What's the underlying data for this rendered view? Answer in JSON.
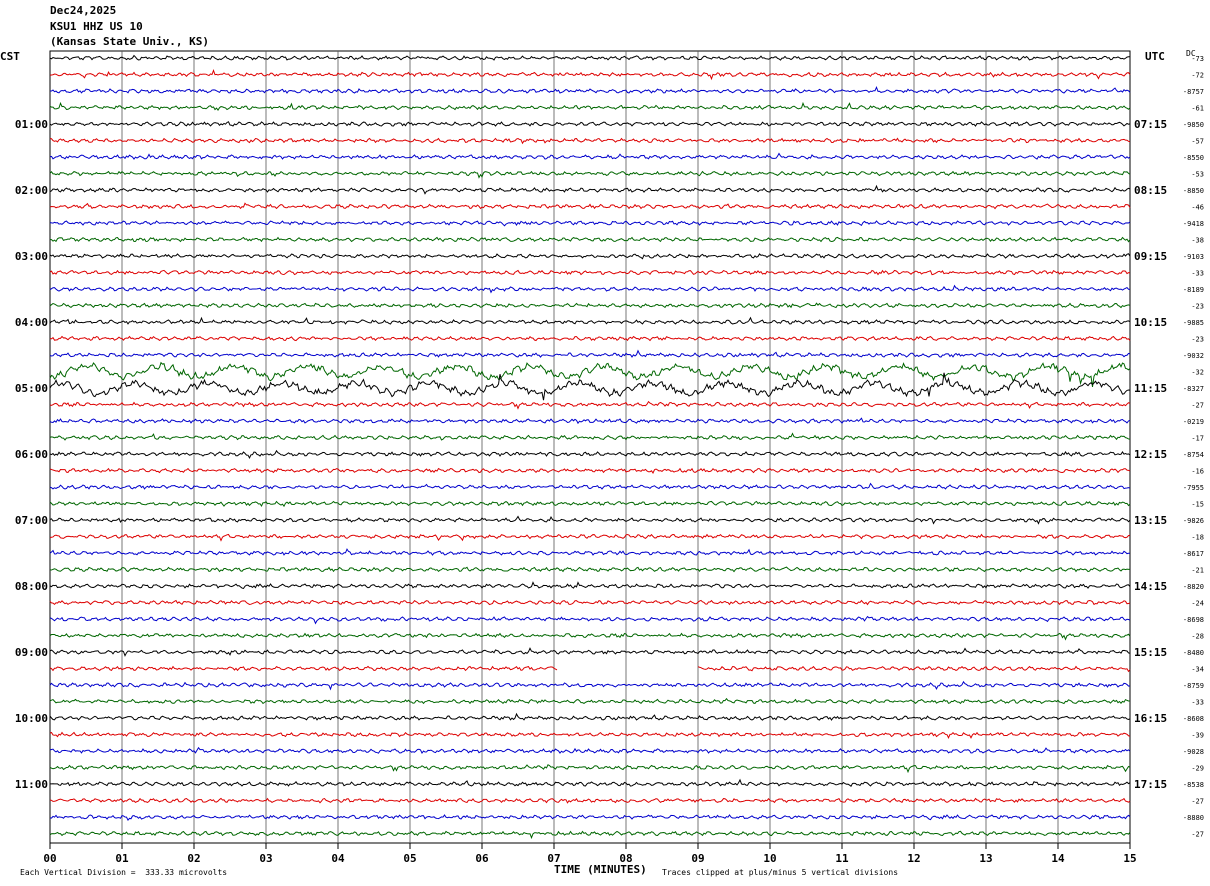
{
  "header": {
    "date": "Dec24,2025",
    "station": "KSU1 HHZ US 10",
    "location": "(Kansas State Univ., KS)"
  },
  "left_tz": "CST",
  "right_tz": "UTC",
  "dc_label": "DC",
  "footer": {
    "scale": "Each Vertical Division =  333.33 microvolts",
    "xlabel": "TIME (MINUTES)",
    "clip_note": "Traces clipped at plus/minus 5 vertical divisions"
  },
  "colors": {
    "trace_cycle": [
      "#000000",
      "#dd0000",
      "#0000cc",
      "#006600"
    ],
    "grid": "#555555"
  },
  "chart_data": {
    "type": "line",
    "title": "KSU1 HHZ US 10",
    "xlabel": "TIME (MINUTES)",
    "xlim": [
      0,
      15
    ],
    "x_ticks": [
      "00",
      "01",
      "02",
      "03",
      "04",
      "05",
      "06",
      "07",
      "08",
      "09",
      "10",
      "11",
      "12",
      "13",
      "14",
      "15"
    ],
    "rows_per_hour": 4,
    "num_rows": 48,
    "left_hour_labels": [
      "01:00",
      "02:00",
      "03:00",
      "04:00",
      "05:00",
      "06:00",
      "07:00",
      "08:00",
      "09:00",
      "10:00",
      "11:00"
    ],
    "right_hour_labels": [
      "07:15",
      "08:15",
      "09:15",
      "10:15",
      "11:15",
      "12:15",
      "13:15",
      "14:15",
      "15:15",
      "16:15",
      "17:15"
    ],
    "dc_offsets": [
      "-73",
      "-72",
      "-8757",
      "-61",
      "-9850",
      "-57",
      "-8550",
      "-53",
      "-8850",
      "-46",
      "-9418",
      "-38",
      "-9103",
      "-33",
      "-8189",
      "-23",
      "-9885",
      "-23",
      "-9032",
      "-32",
      "-8327",
      "-27",
      "-0219",
      "-17",
      "-8754",
      "-16",
      "-7955",
      "-15",
      "-9826",
      "-18",
      "-8617",
      "-21",
      "-8820",
      "-24",
      "-8698",
      "-28",
      "-8480",
      "-34",
      "-8759",
      "-33",
      "-8608",
      "-39",
      "-9028",
      "-29",
      "-8538",
      "-27",
      "-8880",
      "-27"
    ],
    "data_gap": {
      "row": 37,
      "x_start_min": 7.05,
      "x_end_min": 9.0
    },
    "high_activity_rows": [
      19,
      20
    ]
  }
}
